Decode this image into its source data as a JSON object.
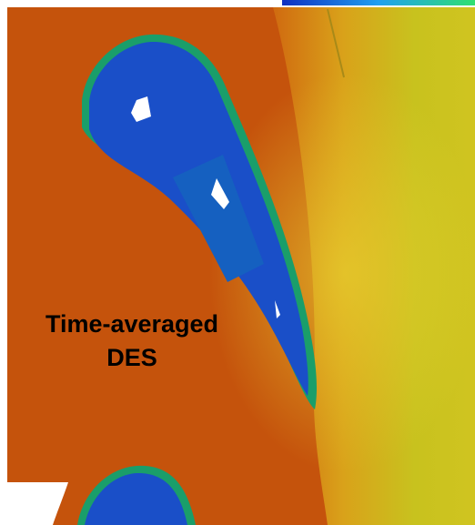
{
  "label": {
    "lines": [
      "Time-averaged",
      "DES"
    ]
  }
}
